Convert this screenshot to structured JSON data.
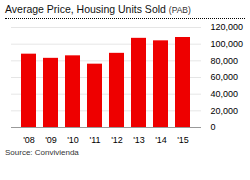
{
  "chart_data": {
    "type": "bar",
    "title": "Average Price, Housing Units Sold",
    "subtitle": "(PAB)",
    "source": "Source: Convivienda",
    "categories": [
      "'08",
      "'09",
      "'10",
      "'11",
      "'12",
      "'13",
      "'14",
      "'15"
    ],
    "values": [
      88000,
      83000,
      86000,
      76000,
      89000,
      107000,
      104000,
      108000
    ],
    "color": "#ee0000",
    "ylim": [
      0,
      120000
    ],
    "yticks": [
      0,
      {
        "value": 20000,
        "label": "20,000"
      },
      {
        "value": 40000,
        "label": "40,000"
      },
      {
        "value": 60000,
        "label": "60,000"
      },
      {
        "value": 80000,
        "label": "80,000"
      },
      {
        "value": 100000,
        "label": "100,000"
      },
      {
        "value": 120000,
        "label": "120,000"
      }
    ],
    "grid": true
  }
}
